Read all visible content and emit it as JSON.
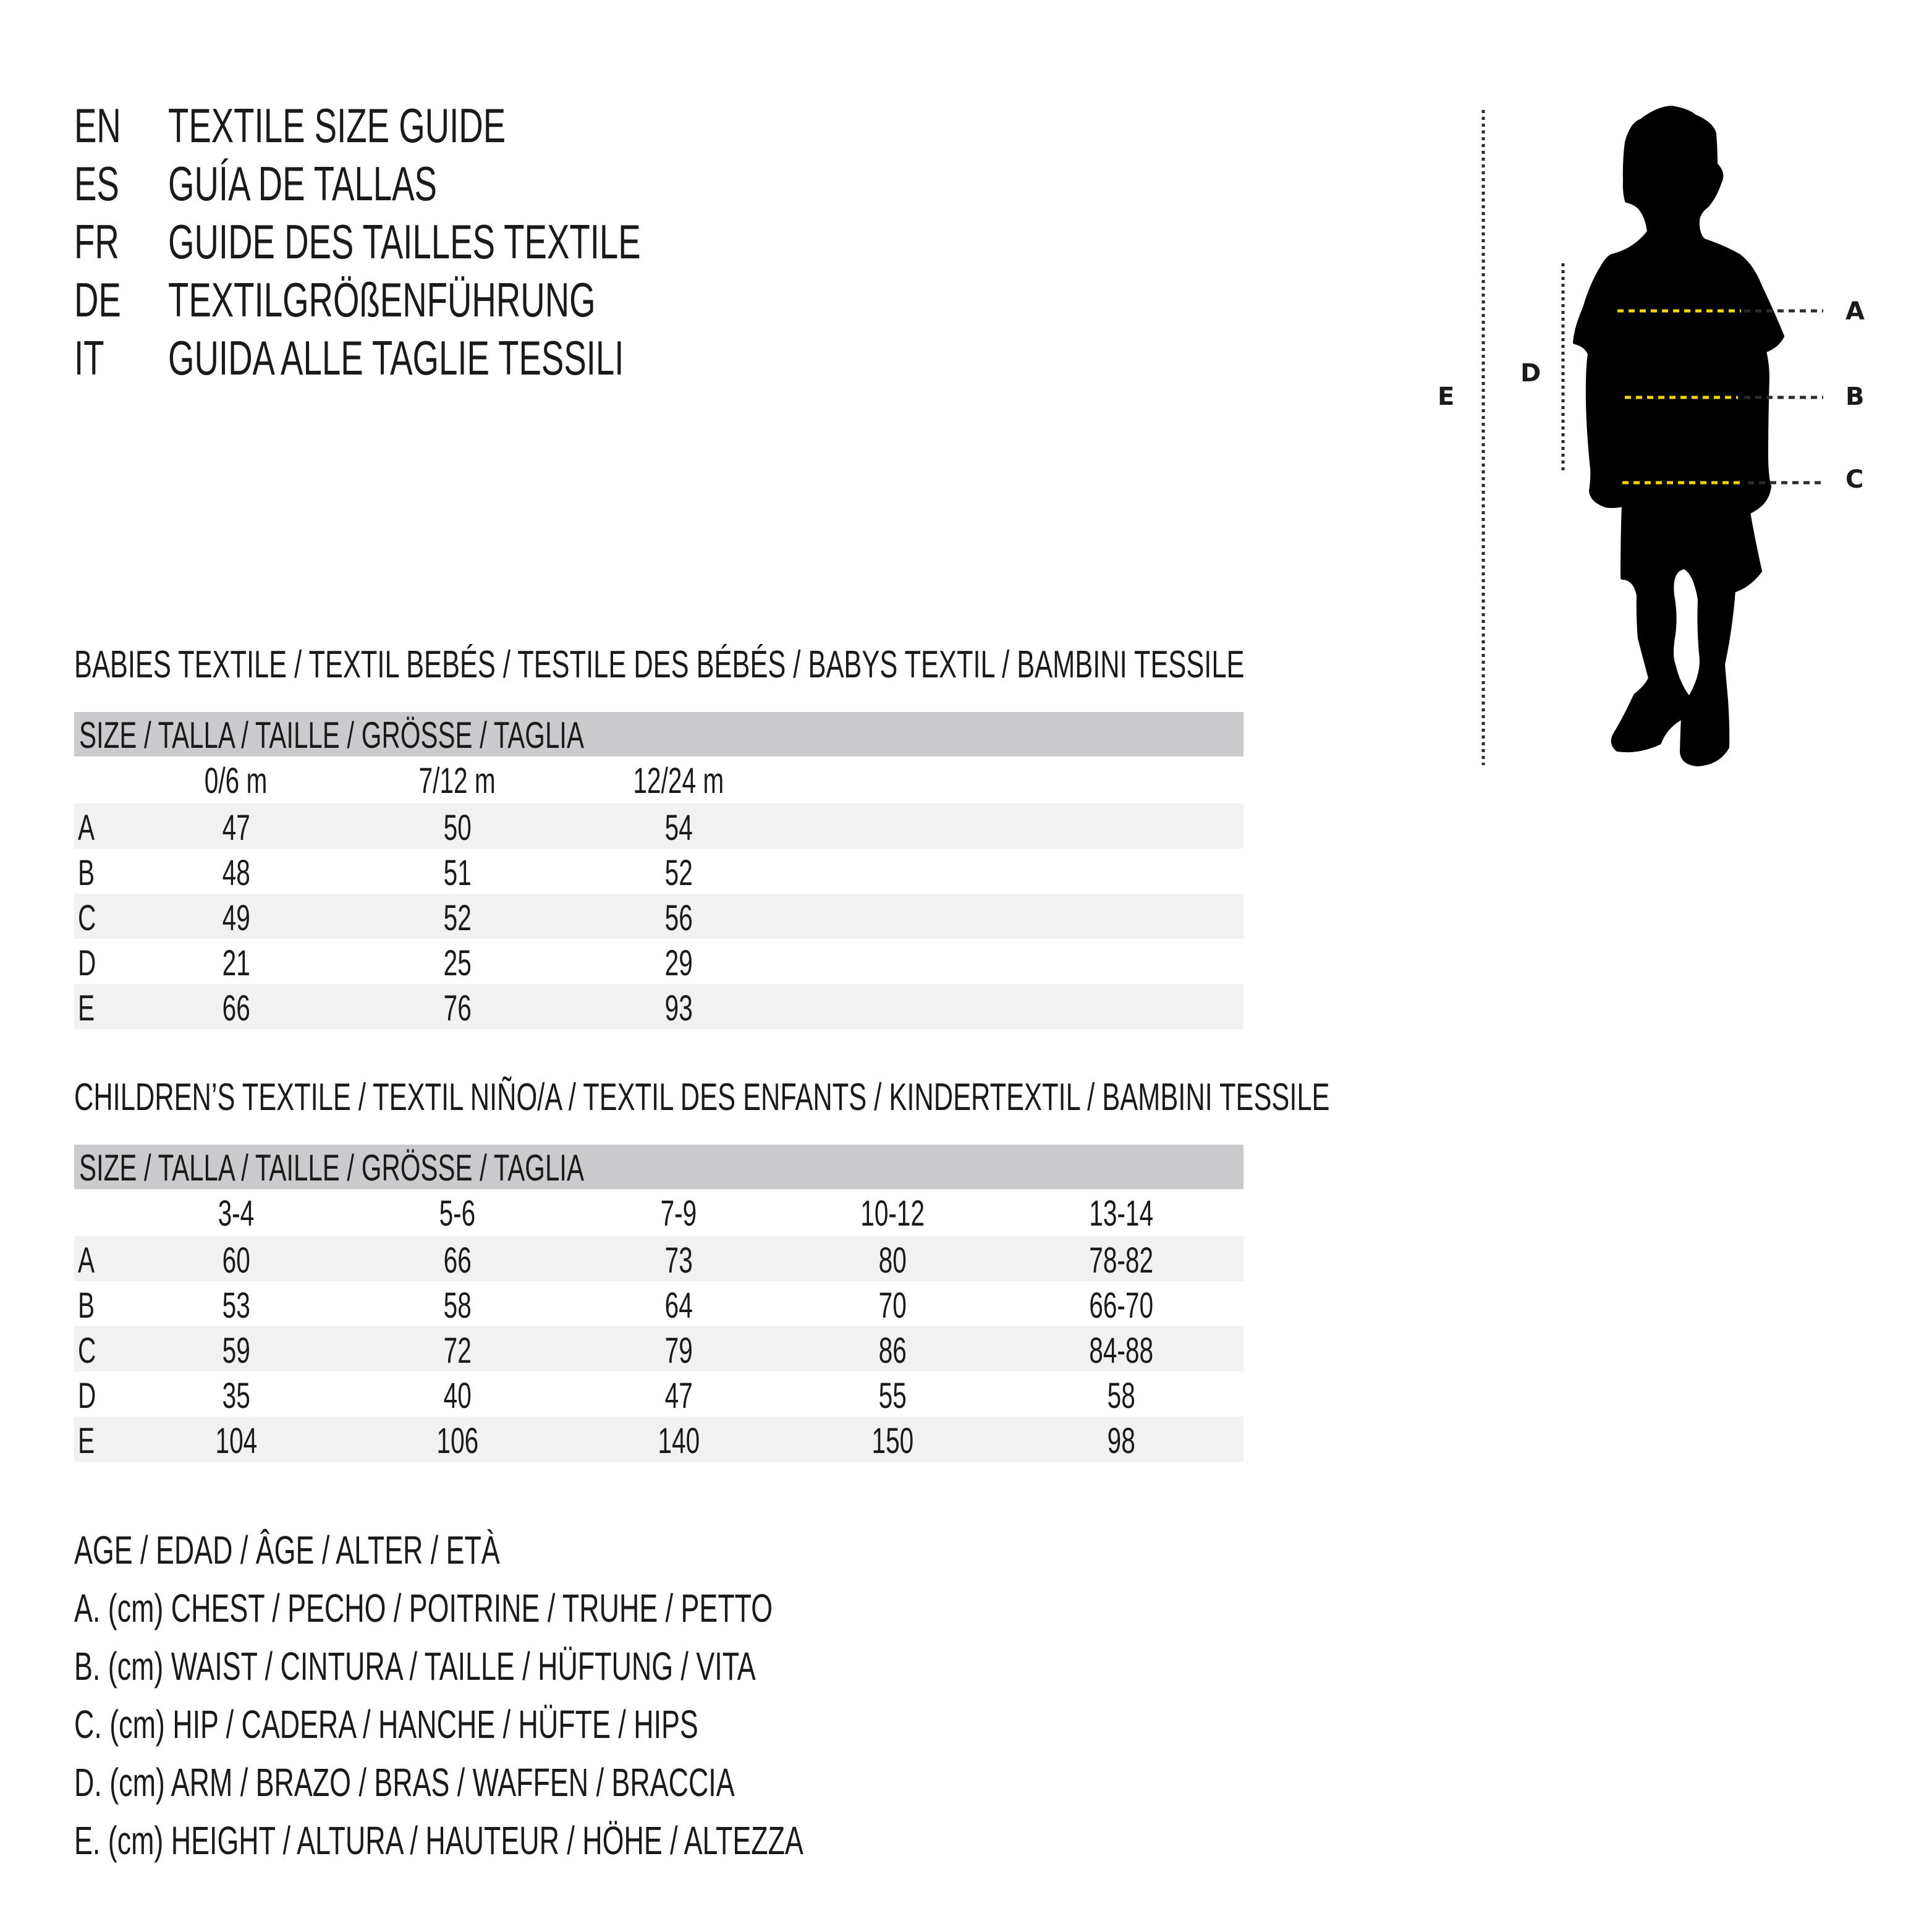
{
  "titles": [
    {
      "lang": "EN",
      "text": "TEXTILE SIZE GUIDE"
    },
    {
      "lang": "ES",
      "text": "GUÍA DE TALLAS"
    },
    {
      "lang": "FR",
      "text": "GUIDE DES TAILLES TEXTILE"
    },
    {
      "lang": "DE",
      "text": "TEXTILGRÖßENFÜHRUNG"
    },
    {
      "lang": "IT",
      "text": "GUIDA ALLE TAGLIE TESSILI"
    }
  ],
  "babies": {
    "title": "BABIES TEXTILE / TEXTIL BEBÉS / TESTILE DES BÉBÉS / BABYS TEXTIL / BAMBINI TESSILE",
    "header": "SIZE / TALLA / TAILLE / GRÖSSE / TAGLIA",
    "columns": [
      "0/6 m",
      "7/12 m",
      "12/24 m"
    ],
    "rows": [
      {
        "label": "A",
        "values": [
          "47",
          "50",
          "54"
        ]
      },
      {
        "label": "B",
        "values": [
          "48",
          "51",
          "52"
        ]
      },
      {
        "label": "C",
        "values": [
          "49",
          "52",
          "56"
        ]
      },
      {
        "label": "D",
        "values": [
          "21",
          "25",
          "29"
        ]
      },
      {
        "label": "E",
        "values": [
          "66",
          "76",
          "93"
        ]
      }
    ]
  },
  "children": {
    "title": "CHILDREN’S TEXTILE / TEXTIL NIÑO/A / TEXTIL DES ENFANTS / KINDERTEXTIL / BAMBINI TESSILE",
    "header": "SIZE / TALLA / TAILLE / GRÖSSE / TAGLIA",
    "columns": [
      "3-4",
      "5-6",
      "7-9",
      "10-12",
      "13-14"
    ],
    "rows": [
      {
        "label": "A",
        "values": [
          "60",
          "66",
          "73",
          "80",
          "78-82"
        ]
      },
      {
        "label": "B",
        "values": [
          "53",
          "58",
          "64",
          "70",
          "66-70"
        ]
      },
      {
        "label": "C",
        "values": [
          "59",
          "72",
          "79",
          "86",
          "84-88"
        ]
      },
      {
        "label": "D",
        "values": [
          "35",
          "40",
          "47",
          "55",
          "58"
        ]
      },
      {
        "label": "E",
        "values": [
          "104",
          "106",
          "140",
          "150",
          "98"
        ]
      }
    ]
  },
  "legend": [
    "AGE / EDAD / ÂGE / ALTER / ETÀ",
    "A. (cm) CHEST / PECHO / POITRINE / TRUHE / PETTO",
    "B. (cm) WAIST / CINTURA / TAILLE / HÜFTUNG / VITA",
    "C. (cm) HIP / CADERA / HANCHE / HÜFTE / HIPS",
    "D. (cm) ARM / BRAZO / BRAS / WAFFEN / BRACCIA",
    "E. (cm) HEIGHT / ALTURA / HAUTEUR / HÖHE / ALTEZZA"
  ],
  "figure": {
    "icon": "child-silhouette-icon",
    "labels": {
      "a": "A",
      "b": "B",
      "c": "C",
      "d": "D",
      "e": "E"
    },
    "colors": {
      "silhouette": "#000000",
      "measure_line": "#f2d400",
      "guide_line": "#2b2b2b",
      "table_header": "#cbcbcd",
      "row_shade": "#f1f1f1"
    }
  }
}
